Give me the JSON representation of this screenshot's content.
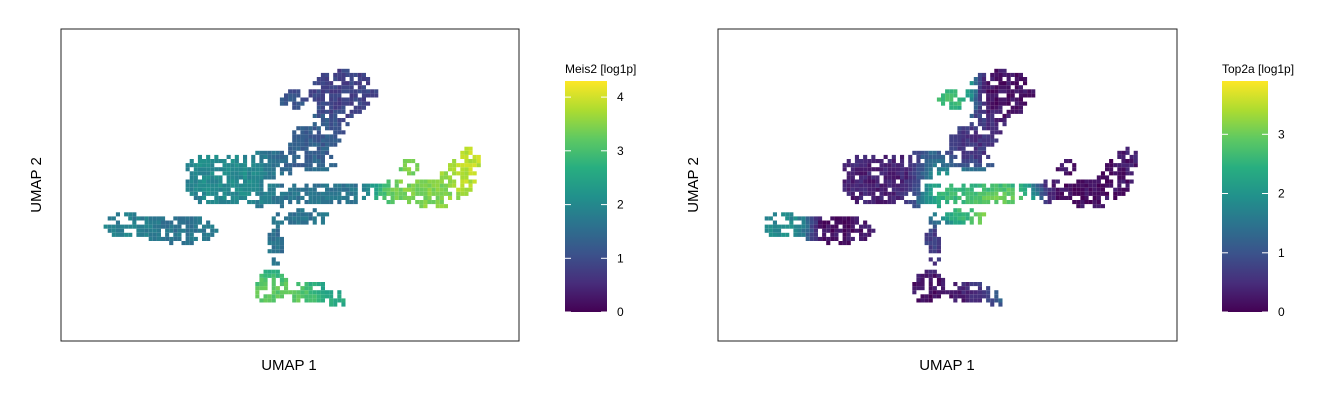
{
  "chart_data": [
    {
      "type": "scatter",
      "subtype": "umap-hexbin-embedding",
      "title": "",
      "xlabel": "UMAP 1",
      "ylabel": "UMAP 2",
      "colorbar": {
        "title": "Meis2 [log1p]",
        "ticks": [
          0,
          1,
          2,
          3,
          4
        ],
        "range": [
          0,
          4.3
        ],
        "colormap": "viridis"
      },
      "regions": [
        {
          "name": "left-branch",
          "x": -8.0,
          "y": -1.0,
          "value": 1.8
        },
        {
          "name": "left-center",
          "x": -5.5,
          "y": -1.2,
          "value": 1.6
        },
        {
          "name": "center-mass",
          "x": -3.5,
          "y": 1.0,
          "value": 2.0
        },
        {
          "name": "upper-stem",
          "x": 0.5,
          "y": 2.5,
          "value": 1.2
        },
        {
          "name": "top-cluster",
          "x": 1.8,
          "y": 4.5,
          "value": 0.8
        },
        {
          "name": "central-bridge",
          "x": 1.0,
          "y": 0.3,
          "value": 1.6
        },
        {
          "name": "right-arm",
          "x": 5.5,
          "y": 0.4,
          "value": 3.4
        },
        {
          "name": "right-tip",
          "x": 7.5,
          "y": 1.5,
          "value": 3.8
        },
        {
          "name": "bottom-stem",
          "x": -1.0,
          "y": -2.0,
          "value": 1.5
        },
        {
          "name": "bottom-cluster",
          "x": -1.2,
          "y": -3.8,
          "value": 3.2
        }
      ]
    },
    {
      "type": "scatter",
      "subtype": "umap-hexbin-embedding",
      "title": "",
      "xlabel": "UMAP 1",
      "ylabel": "UMAP 2",
      "colorbar": {
        "title": "Top2a [log1p]",
        "ticks": [
          0,
          1,
          2,
          3
        ],
        "range": [
          0,
          3.9
        ],
        "colormap": "viridis"
      },
      "regions": [
        {
          "name": "left-branch",
          "x": -8.0,
          "y": -1.0,
          "value": 1.8
        },
        {
          "name": "left-center",
          "x": -5.5,
          "y": -1.2,
          "value": 0.1
        },
        {
          "name": "center-mass",
          "x": -3.5,
          "y": 1.0,
          "value": 0.3
        },
        {
          "name": "upper-stem",
          "x": 0.5,
          "y": 2.5,
          "value": 0.5
        },
        {
          "name": "top-left-cluster",
          "x": -0.5,
          "y": 4.5,
          "value": 2.7
        },
        {
          "name": "top-cluster",
          "x": 1.8,
          "y": 4.5,
          "value": 0.1
        },
        {
          "name": "central-bridge",
          "x": 0.0,
          "y": 0.0,
          "value": 2.6
        },
        {
          "name": "central-lower",
          "x": 1.5,
          "y": -0.6,
          "value": 3.0
        },
        {
          "name": "right-arm",
          "x": 5.5,
          "y": 0.4,
          "value": 0.1
        },
        {
          "name": "bottom-stem",
          "x": -1.0,
          "y": -2.0,
          "value": 0.6
        },
        {
          "name": "bottom-cluster",
          "x": -1.2,
          "y": -3.8,
          "value": 0.1
        }
      ]
    }
  ]
}
